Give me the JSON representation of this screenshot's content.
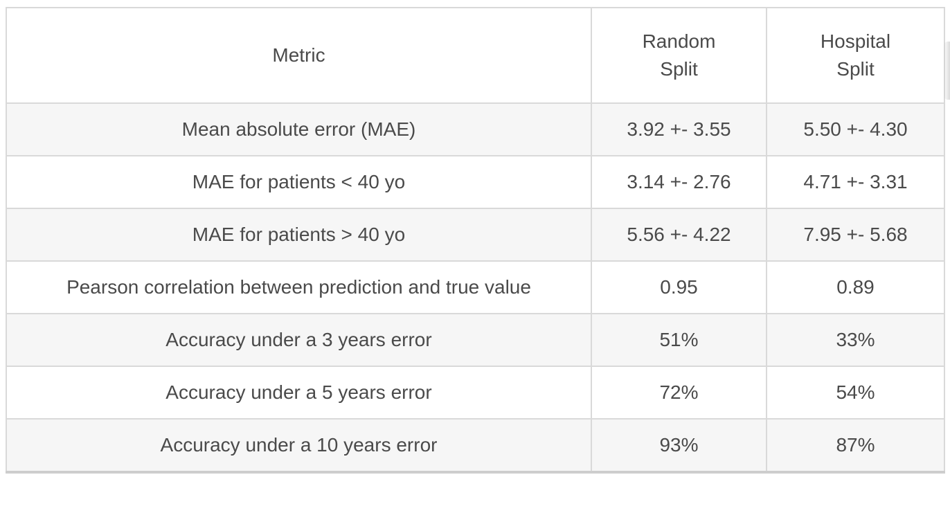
{
  "table": {
    "columns": [
      {
        "id": "metric",
        "lines": [
          "Metric"
        ]
      },
      {
        "id": "random",
        "lines": [
          "Random",
          "Split"
        ]
      },
      {
        "id": "hospital",
        "lines": [
          "Hospital",
          "Split"
        ]
      }
    ],
    "rows": [
      {
        "metric": "Mean absolute error (MAE)",
        "random_split": "3.92 +- 3.55",
        "hospital_split": "5.50 +- 4.30"
      },
      {
        "metric": "MAE for patients < 40 yo",
        "random_split": "3.14 +- 2.76",
        "hospital_split": "4.71 +- 3.31"
      },
      {
        "metric": "MAE for patients > 40 yo",
        "random_split": "5.56 +- 4.22",
        "hospital_split": "7.95 +- 5.68"
      },
      {
        "metric": "Pearson correlation between prediction and true value",
        "random_split": "0.95",
        "hospital_split": "0.89"
      },
      {
        "metric": "Accuracy under a 3 years error",
        "random_split": "51%",
        "hospital_split": "33%"
      },
      {
        "metric": "Accuracy under a 5 years error",
        "random_split": "72%",
        "hospital_split": "54%"
      },
      {
        "metric": "Accuracy under a 10 years error",
        "random_split": "93%",
        "hospital_split": "87%"
      }
    ]
  },
  "colors": {
    "text": "#4a4a4a",
    "border": "#d9d9d9",
    "border_bottom": "#cdcdcd",
    "row_stripe": "#f6f6f6",
    "background": "#ffffff"
  }
}
